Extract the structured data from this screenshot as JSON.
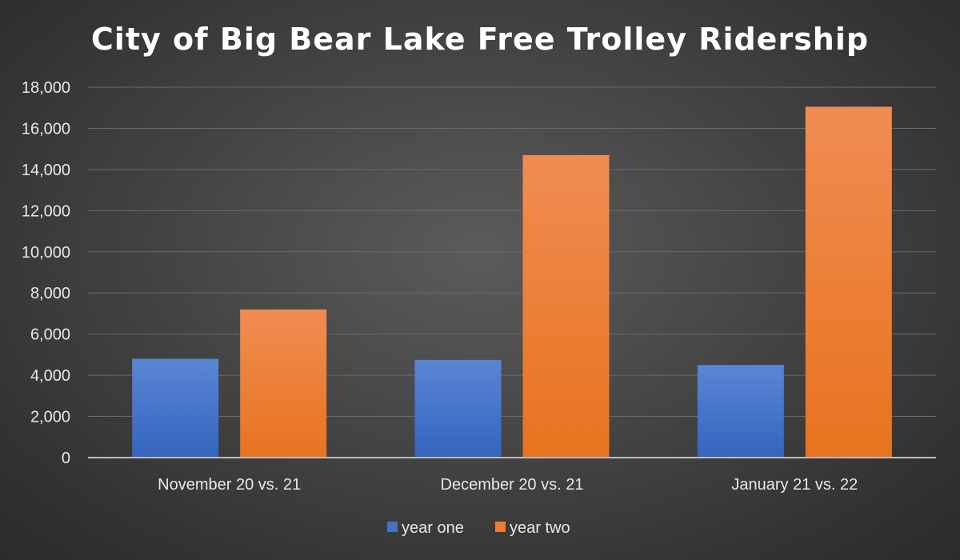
{
  "chart_data": {
    "type": "bar",
    "title": "City of Big Bear Lake Free Trolley Ridership",
    "categories": [
      "November 20 vs. 21",
      "December 20 vs. 21",
      "January 21 vs. 22"
    ],
    "series": [
      {
        "name": "year one",
        "values": [
          4800,
          4750,
          4500
        ],
        "color": "#4472c4"
      },
      {
        "name": "year two",
        "values": [
          7200,
          14700,
          17050
        ],
        "color": "#ed7d31"
      }
    ],
    "ylim": [
      0,
      18000
    ],
    "yticks": [
      "0",
      "2,000",
      "4,000",
      "6,000",
      "8,000",
      "10,000",
      "12,000",
      "14,000",
      "16,000",
      "18,000"
    ],
    "grid": true,
    "legend": "bottom"
  }
}
